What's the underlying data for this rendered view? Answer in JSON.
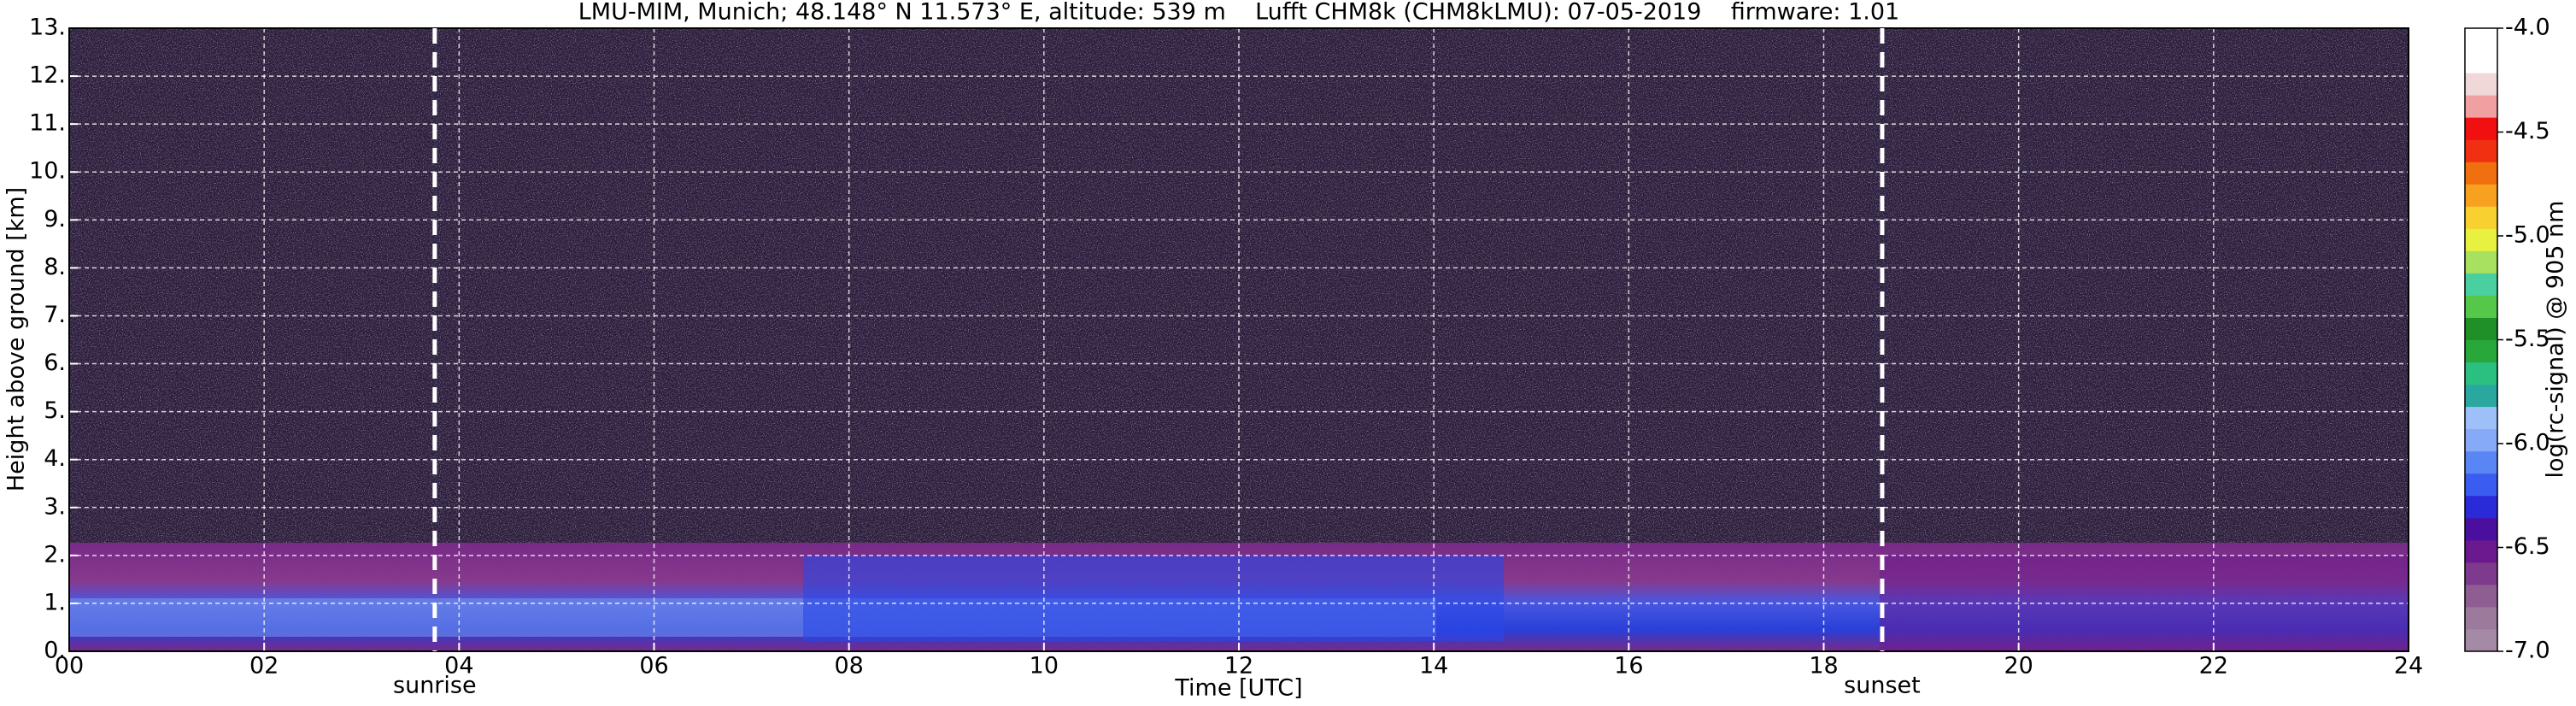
{
  "chart_data": {
    "type": "heatmap",
    "title": "LMU-MIM, Munich; 48.148° N 11.573° E, altitude: 539 m    Lufft CHM8k (CHM8kLMU): 07-05-2019    firmware: 1.01",
    "xlabel": "Time [UTC]",
    "ylabel": "Height above ground [km]",
    "xlim": [
      0,
      24
    ],
    "xticks": [
      {
        "value": 0,
        "label": "00"
      },
      {
        "value": 2,
        "label": "02"
      },
      {
        "value": 4,
        "label": "04"
      },
      {
        "value": 6,
        "label": "06"
      },
      {
        "value": 8,
        "label": "08"
      },
      10,
      12,
      14,
      16,
      18,
      20,
      22,
      24
    ],
    "ylim": [
      0,
      13
    ],
    "yticks": [
      {
        "value": 0,
        "label": "0."
      },
      {
        "value": 1,
        "label": "1."
      },
      {
        "value": 2,
        "label": "2."
      },
      {
        "value": 3,
        "label": "3."
      },
      {
        "value": 4,
        "label": "4."
      },
      {
        "value": 5,
        "label": "5."
      },
      {
        "value": 6,
        "label": "6."
      },
      {
        "value": 7,
        "label": "7."
      },
      {
        "value": 8,
        "label": "8."
      },
      {
        "value": 9,
        "label": "9."
      },
      {
        "value": 10,
        "label": "10."
      },
      {
        "value": 11,
        "label": "11."
      },
      {
        "value": 12,
        "label": "12."
      },
      {
        "value": 13,
        "label": "13."
      }
    ],
    "grid": true,
    "colorbar_label": "log(rc-signal) @ 905 nm",
    "clim": [
      -7,
      -4
    ],
    "cticks": [
      {
        "value": -7,
        "label": "-7.0"
      },
      -6.5,
      {
        "value": -6,
        "label": "-6.0"
      },
      -5.5,
      {
        "value": -5,
        "label": "-5.0"
      },
      -4.5,
      {
        "value": -4,
        "label": "-4.0"
      }
    ],
    "colormap": [
      "#a58aa5",
      "#9c7a9c",
      "#8e5e93",
      "#7e3a8c",
      "#6a1a8e",
      "#4b0fa0",
      "#2a2ad8",
      "#3a5cf0",
      "#5a86f5",
      "#86aaf8",
      "#9ec0f8",
      "#2aa8a0",
      "#2bbf80",
      "#28a83a",
      "#1f8f28",
      "#55c84a",
      "#4ad0a0",
      "#a8e060",
      "#e8f040",
      "#f8d030",
      "#f8a020",
      "#f07010",
      "#f03010",
      "#f01010",
      "#f0a0a0",
      "#f0d8d8",
      "#ffffff",
      "#ffffff"
    ],
    "annotations": [
      {
        "text": "sunrise",
        "x": 3.75
      },
      {
        "text": "sunset",
        "x": 18.6
      }
    ]
  }
}
